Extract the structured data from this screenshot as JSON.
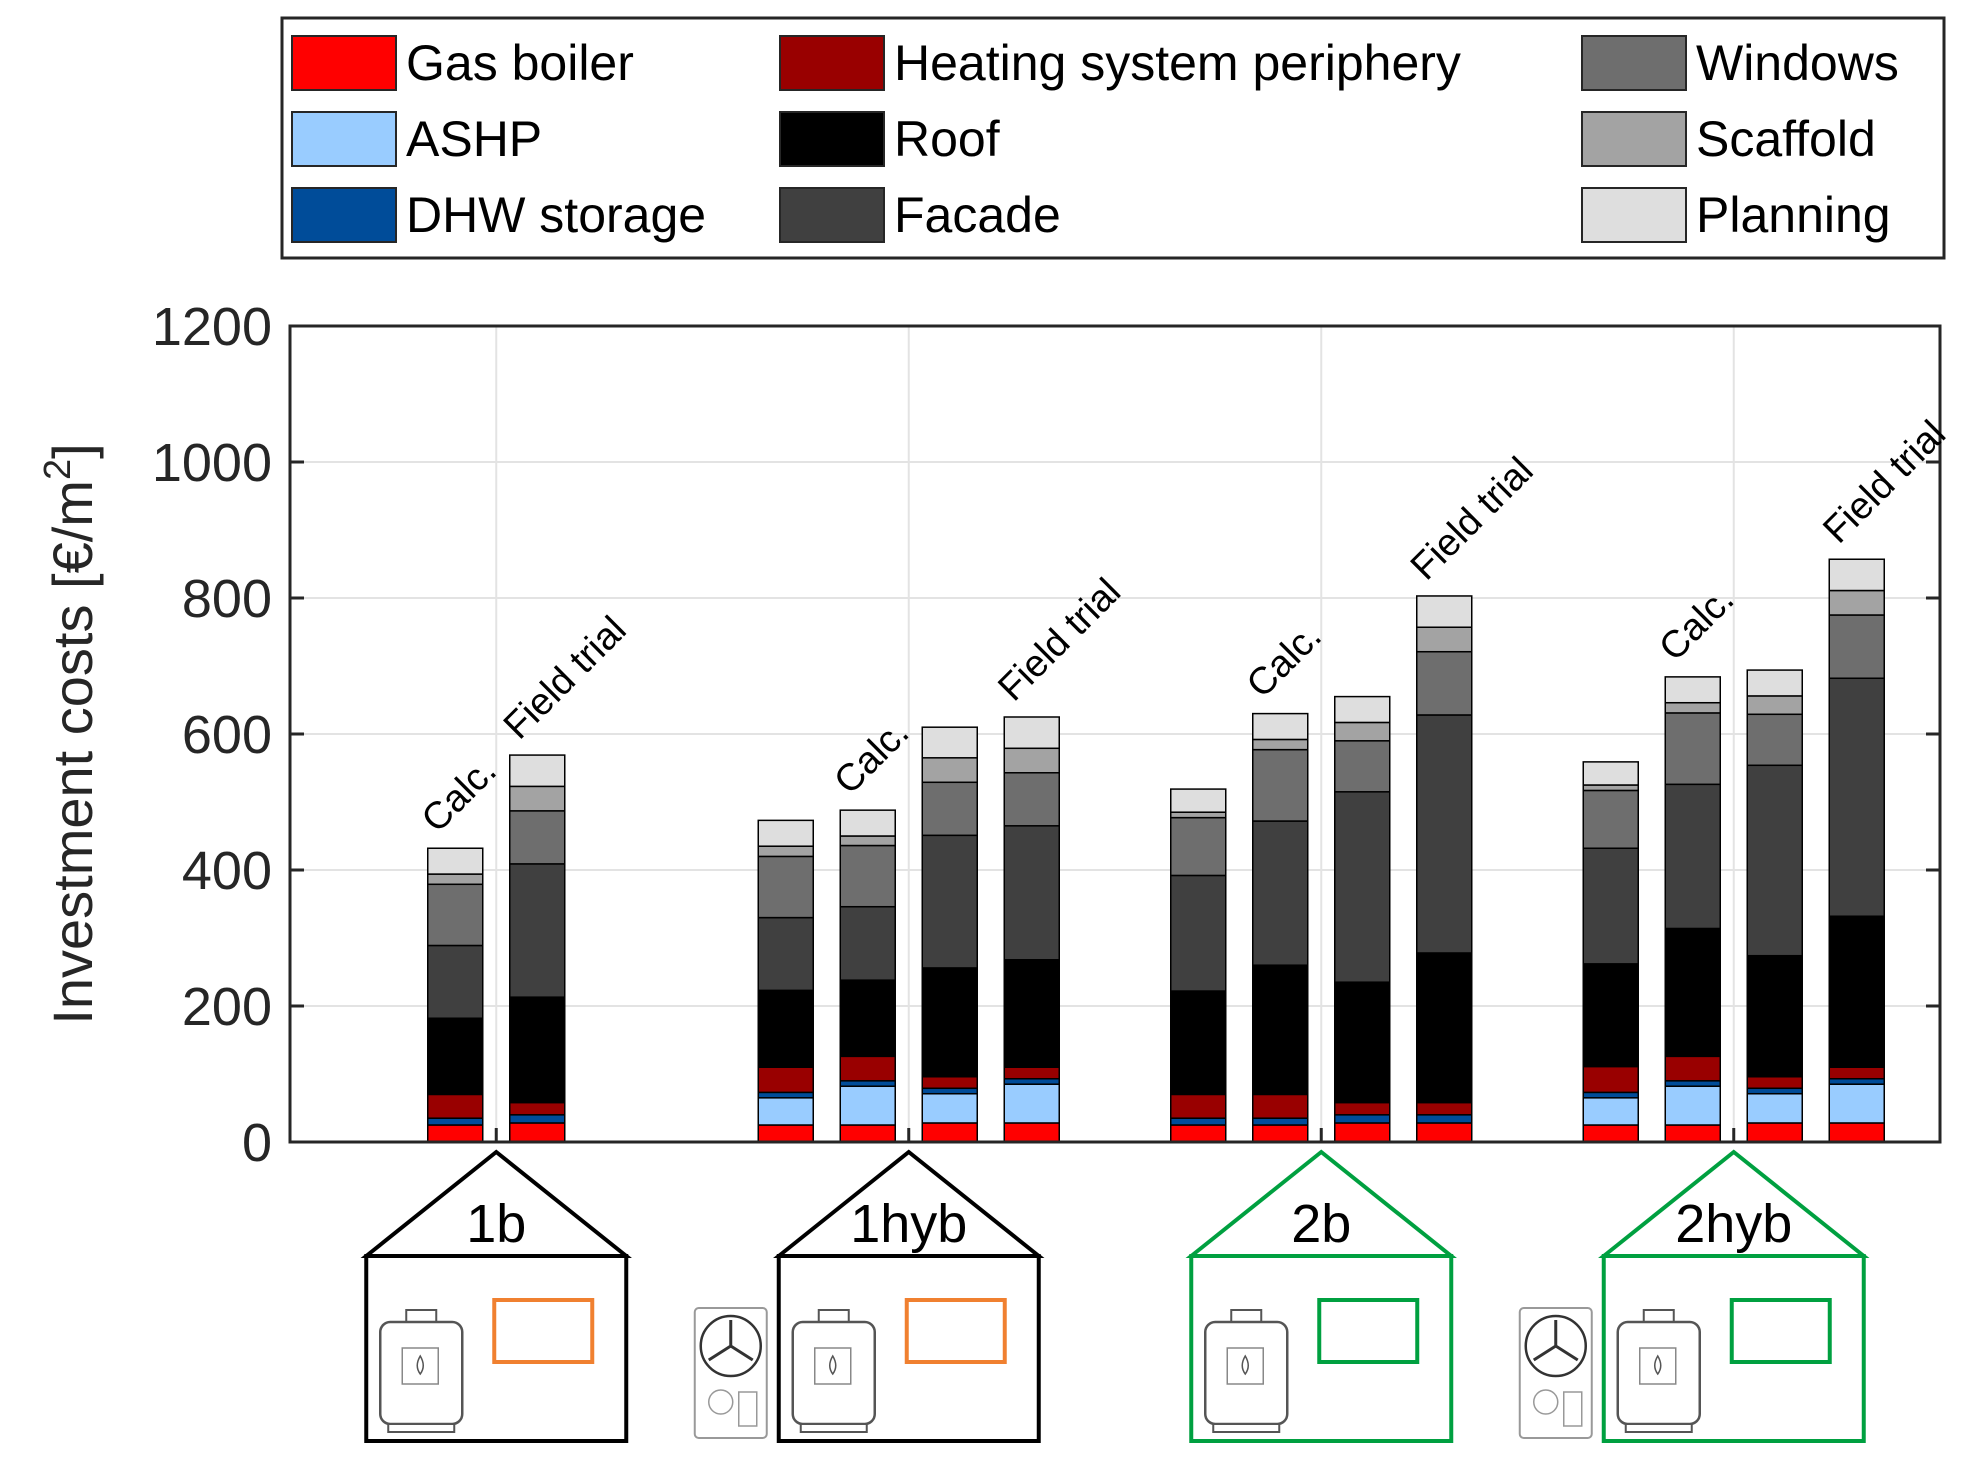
{
  "chart_data": {
    "type": "bar",
    "stacked": true,
    "ylabel": "Investment costs [€/m",
    "ylabel_superscript": "2",
    "ylabel_close": "]",
    "ylim": [
      0,
      1200
    ],
    "yticks": [
      "0",
      "200",
      "400",
      "600",
      "800",
      "1000",
      "1200"
    ],
    "grid": true,
    "legend_position": "top",
    "series": [
      {
        "name": "Gas boiler",
        "color": "#ff0000"
      },
      {
        "name": "ASHP",
        "color": "#99ccff"
      },
      {
        "name": "DHW storage",
        "color": "#004c99"
      },
      {
        "name": "Heating system periphery",
        "color": "#990000"
      },
      {
        "name": "Roof",
        "color": "#000000"
      },
      {
        "name": "Facade",
        "color": "#404040"
      },
      {
        "name": "Windows",
        "color": "#6e6e6e"
      },
      {
        "name": "Scaffold",
        "color": "#a3a3a3"
      },
      {
        "name": "Planning",
        "color": "#dedede"
      }
    ],
    "groups": [
      {
        "label": "1b",
        "outline_color": "#000000",
        "heat_pump": false,
        "window_color": "#f08030",
        "bars": [
          {
            "values": [
              25,
              0,
              10,
              35,
              112,
              107,
              90,
              15,
              38
            ]
          },
          {
            "values": [
              28,
              0,
              12,
              18,
              155,
              196,
              78,
              36,
              46
            ]
          }
        ]
      },
      {
        "label": "1hyb",
        "outline_color": "#000000",
        "heat_pump": true,
        "window_color": "#f08030",
        "bars": [
          {
            "values": [
              25,
              40,
              8,
              37,
              113,
              107,
              90,
              15,
              38
            ]
          },
          {
            "values": [
              25,
              57,
              8,
              36,
              112,
              108,
              90,
              14,
              38
            ]
          },
          {
            "values": [
              28,
              43,
              8,
              17,
              160,
              195,
              78,
              36,
              45
            ]
          },
          {
            "values": [
              28,
              57,
              8,
              17,
              158,
              197,
              78,
              36,
              46
            ]
          }
        ]
      },
      {
        "label": "2b",
        "outline_color": "#00a040",
        "heat_pump": false,
        "window_color": "#00a040",
        "bars": [
          {
            "values": [
              25,
              0,
              10,
              35,
              152,
              170,
              85,
              8,
              34
            ]
          },
          {
            "values": [
              25,
              0,
              10,
              35,
              190,
              212,
              105,
              15,
              38
            ]
          },
          {
            "values": [
              28,
              0,
              12,
              18,
              177,
              280,
              75,
              27,
              38
            ]
          },
          {
            "values": [
              28,
              0,
              12,
              18,
              220,
              350,
              93,
              36,
              46
            ]
          }
        ]
      },
      {
        "label": "2hyb",
        "outline_color": "#00a040",
        "heat_pump": true,
        "window_color": "#00a040",
        "bars": [
          {
            "values": [
              25,
              40,
              8,
              38,
              151,
              170,
              85,
              8,
              34
            ]
          },
          {
            "values": [
              25,
              57,
              8,
              36,
              188,
              212,
              105,
              15,
              38
            ]
          },
          {
            "values": [
              28,
              43,
              8,
              17,
              178,
              280,
              75,
              27,
              38
            ]
          },
          {
            "values": [
              28,
              57,
              8,
              17,
              222,
              350,
              93,
              36,
              46
            ]
          }
        ]
      }
    ],
    "annotations": [
      {
        "text": "Calc.",
        "group": 0,
        "bar": 0
      },
      {
        "text": "Field trial",
        "group": 0,
        "bar": 1
      },
      {
        "text": "Calc.",
        "group": 1,
        "bar": 1
      },
      {
        "text": "Field trial",
        "group": 1,
        "bar": 3
      },
      {
        "text": "Calc.",
        "group": 2,
        "bar": 1
      },
      {
        "text": "Field trial",
        "group": 2,
        "bar": 3
      },
      {
        "text": "Calc.",
        "group": 3,
        "bar": 1
      },
      {
        "text": "Field trial",
        "group": 3,
        "bar": 3
      }
    ]
  }
}
